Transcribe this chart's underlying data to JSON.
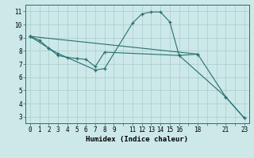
{
  "bg_color": "#cce8e8",
  "grid_color": "#aacccc",
  "line_color": "#2a6e6e",
  "xlabel": "Humidex (Indice chaleur)",
  "xlabel_fontsize": 6.5,
  "tick_fontsize": 5.5,
  "yticks": [
    3,
    4,
    5,
    6,
    7,
    8,
    9,
    10,
    11
  ],
  "xtick_labels": [
    "0",
    "1",
    "2",
    "3",
    "4",
    "5",
    "6",
    "7",
    "8",
    "9",
    "",
    "11",
    "12",
    "13",
    "14",
    "15",
    "16",
    "",
    "18",
    "",
    "",
    "21",
    "",
    "23"
  ],
  "xtick_positions": [
    0,
    1,
    2,
    3,
    4,
    5,
    6,
    7,
    8,
    9,
    10,
    11,
    12,
    13,
    14,
    15,
    16,
    17,
    18,
    19,
    20,
    21,
    22,
    23
  ],
  "xlim": [
    -0.5,
    23.5
  ],
  "ylim": [
    2.5,
    11.5
  ],
  "line1_x": [
    0,
    1,
    2,
    3,
    7,
    8,
    11,
    12,
    13,
    14,
    15,
    16,
    21,
    23
  ],
  "line1_y": [
    9.1,
    8.8,
    8.2,
    7.8,
    6.55,
    6.65,
    10.1,
    10.8,
    10.95,
    10.95,
    10.2,
    7.65,
    4.5,
    2.9
  ],
  "line2_x": [
    0,
    2,
    3,
    4,
    5,
    6,
    7,
    8,
    16,
    18
  ],
  "line2_y": [
    9.1,
    8.2,
    7.65,
    7.5,
    7.42,
    7.35,
    6.8,
    7.9,
    7.65,
    7.75
  ],
  "line3_x": [
    0,
    18,
    21,
    23
  ],
  "line3_y": [
    9.1,
    7.75,
    4.5,
    2.9
  ]
}
